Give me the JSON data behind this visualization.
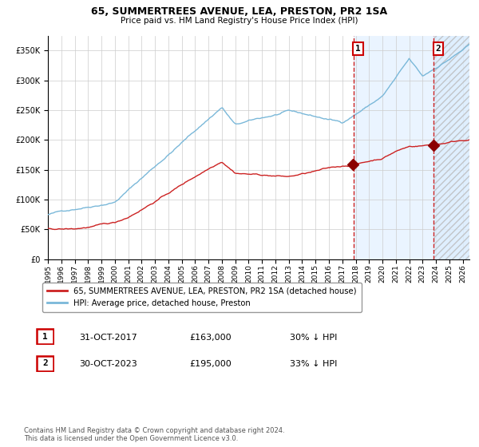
{
  "title": "65, SUMMERTREES AVENUE, LEA, PRESTON, PR2 1SA",
  "subtitle": "Price paid vs. HM Land Registry's House Price Index (HPI)",
  "legend_house": "65, SUMMERTREES AVENUE, LEA, PRESTON, PR2 1SA (detached house)",
  "legend_hpi": "HPI: Average price, detached house, Preston",
  "footnote": "Contains HM Land Registry data © Crown copyright and database right 2024.\nThis data is licensed under the Open Government Licence v3.0.",
  "marker1_date": "31-OCT-2017",
  "marker1_price": "£163,000",
  "marker1_hpi": "30% ↓ HPI",
  "marker2_date": "30-OCT-2023",
  "marker2_price": "£195,000",
  "marker2_hpi": "33% ↓ HPI",
  "hpi_color": "#7ab8d9",
  "house_color": "#cc2222",
  "marker_color": "#8b0000",
  "vline_color": "#cc2222",
  "bg_shaded_color": "#ddeeff",
  "hatch_color": "#bbbbbb",
  "grid_color": "#cccccc",
  "ylim": [
    0,
    375000
  ],
  "yticks": [
    0,
    50000,
    100000,
    150000,
    200000,
    250000,
    300000,
    350000
  ],
  "xlim_start": 1995.0,
  "xlim_end": 2026.5,
  "marker1_x": 2017.83,
  "marker2_x": 2023.83,
  "shade_start": 2017.83,
  "shade_end": 2026.5,
  "years": [
    1995,
    1996,
    1997,
    1998,
    1999,
    2000,
    2001,
    2002,
    2003,
    2004,
    2005,
    2006,
    2007,
    2008,
    2009,
    2010,
    2011,
    2012,
    2013,
    2014,
    2015,
    2016,
    2017,
    2018,
    2019,
    2020,
    2021,
    2022,
    2023,
    2024,
    2025,
    2026
  ]
}
